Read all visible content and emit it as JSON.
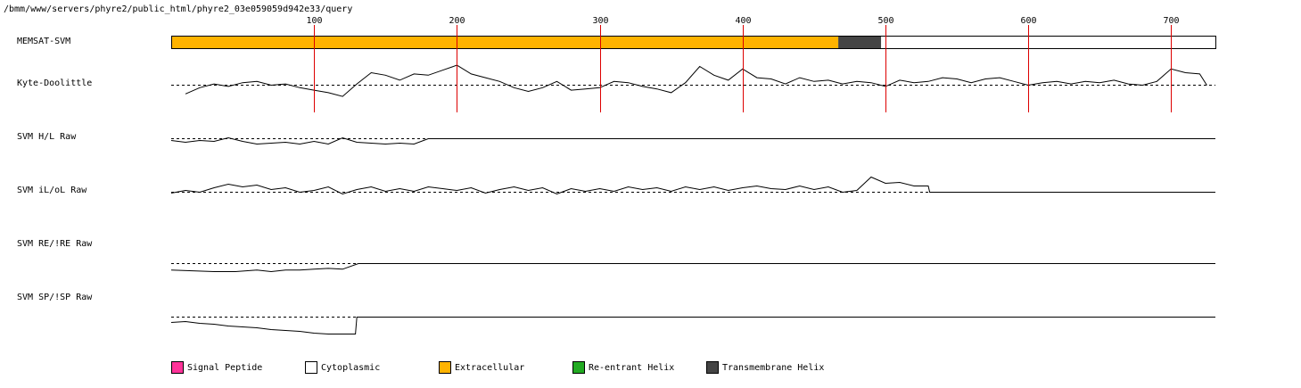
{
  "path": "/bmm/www/servers/phyre2/public_html/phyre2_03e059059d942e33/query",
  "tracks": [
    {
      "label": "MEMSAT-SVM"
    },
    {
      "label": "Kyte-Doolittle"
    },
    {
      "label": "SVM H/L Raw"
    },
    {
      "label": "SVM iL/oL Raw"
    },
    {
      "label": "SVM RE/!RE Raw"
    },
    {
      "label": "SVM SP/!SP Raw"
    }
  ],
  "legend": [
    {
      "label": "Signal Peptide",
      "color": "#ff3399"
    },
    {
      "label": "Cytoplasmic",
      "color": "#ffffff"
    },
    {
      "label": "Extracellular",
      "color": "#ffb300"
    },
    {
      "label": "Re-entrant Helix",
      "color": "#22aa22"
    },
    {
      "label": "Transmembrane Helix",
      "color": "#444444"
    }
  ],
  "chart_data": {
    "type": "line",
    "xlim": [
      0,
      731
    ],
    "x_ticks": [
      100,
      200,
      300,
      400,
      500,
      600,
      700
    ],
    "sequence_length": 731,
    "colors": {
      "tick_line": "#dd0000",
      "extracellular": "#ffb300",
      "transmembrane": "#444444",
      "cytoplasmic": "#ffffff"
    },
    "memsat_segments": [
      {
        "type": "extracellular",
        "start": 0,
        "end": 467
      },
      {
        "type": "transmembrane",
        "start": 467,
        "end": 497
      },
      {
        "type": "cytoplasmic",
        "start": 497,
        "end": 731
      }
    ],
    "kyte_doolittle": {
      "x": [
        10,
        20,
        30,
        40,
        50,
        60,
        70,
        80,
        90,
        100,
        110,
        120,
        130,
        140,
        150,
        160,
        170,
        180,
        190,
        200,
        210,
        220,
        230,
        240,
        250,
        260,
        270,
        280,
        290,
        300,
        310,
        320,
        330,
        340,
        350,
        360,
        370,
        380,
        390,
        400,
        410,
        420,
        430,
        440,
        450,
        460,
        470,
        480,
        490,
        500,
        510,
        520,
        530,
        540,
        550,
        560,
        570,
        580,
        590,
        600,
        610,
        620,
        630,
        640,
        650,
        660,
        670,
        680,
        690,
        700,
        710,
        720,
        725
      ],
      "y": [
        -0.7,
        -0.2,
        0.1,
        -0.1,
        0.2,
        0.3,
        0.0,
        0.1,
        -0.2,
        -0.4,
        -0.6,
        -0.9,
        0.1,
        1.0,
        0.8,
        0.4,
        0.9,
        0.8,
        1.2,
        1.6,
        0.9,
        0.6,
        0.3,
        -0.2,
        -0.5,
        -0.2,
        0.3,
        -0.4,
        -0.3,
        -0.2,
        0.3,
        0.2,
        -0.1,
        -0.3,
        -0.6,
        0.2,
        1.5,
        0.8,
        0.4,
        1.3,
        0.6,
        0.5,
        0.1,
        0.6,
        0.3,
        0.4,
        0.1,
        0.3,
        0.2,
        -0.1,
        0.4,
        0.2,
        0.3,
        0.6,
        0.5,
        0.2,
        0.5,
        0.6,
        0.3,
        0.0,
        0.2,
        0.3,
        0.1,
        0.3,
        0.2,
        0.4,
        0.1,
        0.0,
        0.3,
        1.3,
        1.0,
        0.9,
        0.0
      ]
    },
    "svm_hl": {
      "x": [
        0,
        10,
        20,
        30,
        40,
        50,
        60,
        70,
        80,
        90,
        100,
        110,
        120,
        130,
        140,
        150,
        160,
        170,
        180,
        731
      ],
      "y": [
        -0.2,
        -0.4,
        -0.2,
        -0.3,
        0.1,
        -0.3,
        -0.6,
        -0.5,
        -0.4,
        -0.6,
        -0.3,
        -0.6,
        0.1,
        -0.4,
        -0.5,
        -0.6,
        -0.5,
        -0.6,
        0.0,
        0.0
      ]
    },
    "svm_iloi": {
      "x": [
        0,
        10,
        20,
        30,
        40,
        50,
        60,
        70,
        80,
        90,
        100,
        110,
        120,
        130,
        140,
        150,
        160,
        170,
        180,
        190,
        200,
        210,
        220,
        230,
        240,
        250,
        260,
        270,
        280,
        290,
        300,
        310,
        320,
        330,
        340,
        350,
        360,
        370,
        380,
        390,
        400,
        410,
        420,
        430,
        440,
        450,
        460,
        470,
        480,
        490,
        500,
        510,
        520,
        530,
        531,
        731
      ],
      "y": [
        -0.1,
        0.2,
        0.0,
        0.5,
        0.9,
        0.6,
        0.8,
        0.3,
        0.5,
        0.0,
        0.2,
        0.6,
        -0.2,
        0.3,
        0.6,
        0.1,
        0.4,
        0.1,
        0.6,
        0.4,
        0.2,
        0.5,
        -0.1,
        0.3,
        0.6,
        0.2,
        0.5,
        -0.2,
        0.4,
        0.1,
        0.4,
        0.1,
        0.6,
        0.3,
        0.5,
        0.1,
        0.6,
        0.3,
        0.6,
        0.2,
        0.5,
        0.7,
        0.4,
        0.3,
        0.7,
        0.3,
        0.6,
        0.0,
        0.2,
        1.7,
        1.0,
        1.1,
        0.7,
        0.7,
        0.0,
        0.0
      ]
    },
    "svm_re": {
      "x": [
        0,
        15,
        30,
        45,
        60,
        65,
        70,
        80,
        90,
        100,
        110,
        120,
        131,
        731
      ],
      "y": [
        -0.8,
        -0.9,
        -1.0,
        -1.0,
        -0.8,
        -0.9,
        -1.0,
        -0.8,
        -0.8,
        -0.7,
        -0.6,
        -0.7,
        0.0,
        0.0
      ]
    },
    "svm_sp": {
      "x": [
        0,
        10,
        20,
        30,
        40,
        50,
        60,
        70,
        80,
        90,
        100,
        110,
        120,
        129,
        130,
        731
      ],
      "y": [
        -0.6,
        -0.5,
        -0.7,
        -0.8,
        -1.0,
        -1.1,
        -1.2,
        -1.4,
        -1.5,
        -1.6,
        -1.8,
        -1.9,
        -1.9,
        -1.9,
        0.0,
        0.0
      ]
    }
  }
}
